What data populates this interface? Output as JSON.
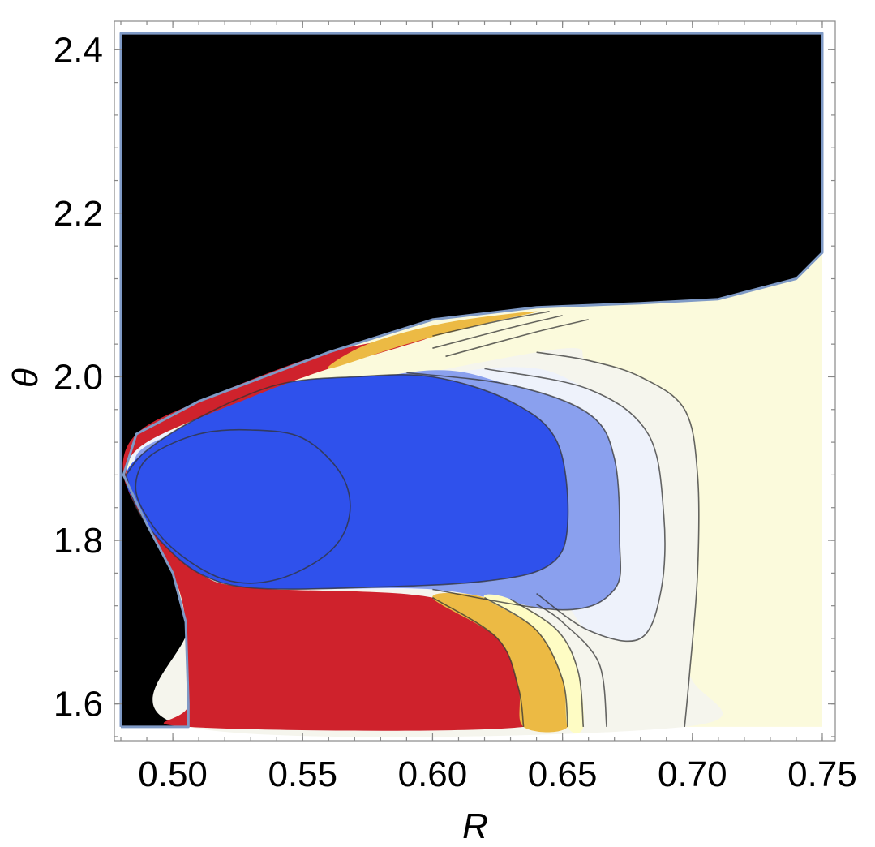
{
  "chart_data": {
    "type": "contour",
    "xlabel": "R",
    "ylabel": "θ",
    "xlim": [
      0.4775,
      0.755
    ],
    "ylim": [
      1.555,
      2.435
    ],
    "x_ticks": [
      {
        "value": 0.5,
        "label": "0.50"
      },
      {
        "value": 0.55,
        "label": "0.55"
      },
      {
        "value": 0.6,
        "label": "0.60"
      },
      {
        "value": 0.65,
        "label": "0.65"
      },
      {
        "value": 0.7,
        "label": "0.70"
      },
      {
        "value": 0.75,
        "label": "0.75"
      }
    ],
    "y_ticks": [
      {
        "value": 1.6,
        "label": "1.6"
      },
      {
        "value": 1.8,
        "label": "1.8"
      },
      {
        "value": 2.0,
        "label": "2.0"
      },
      {
        "value": 2.2,
        "label": "2.2"
      },
      {
        "value": 2.4,
        "label": "2.4"
      }
    ],
    "grid": false,
    "legend": "none",
    "colors": {
      "excluded": "#000000",
      "boundary": "#7f9ac6",
      "red": "#cf222c",
      "orange": "#ecba44",
      "light_yellow": "#fefcc4",
      "pale_gray": "#f5f5ed",
      "pale_blue": "#eef2fb",
      "mid_blue": "#8aa0ee",
      "deep_blue": "#2f51ec",
      "background": "#fbfadc"
    },
    "regions": [
      {
        "name": "excluded",
        "color": "excluded",
        "points": [
          [
            0.48,
            1.572
          ],
          [
            0.506,
            1.572
          ],
          [
            0.506,
            1.6
          ],
          [
            0.505,
            1.7
          ],
          [
            0.5,
            1.76
          ],
          [
            0.49,
            1.82
          ],
          [
            0.481,
            1.88
          ],
          [
            0.486,
            1.93
          ],
          [
            0.51,
            1.97
          ],
          [
            0.56,
            2.03
          ],
          [
            0.6,
            2.07
          ],
          [
            0.64,
            2.085
          ],
          [
            0.68,
            2.09
          ],
          [
            0.71,
            2.095
          ],
          [
            0.74,
            2.12
          ],
          [
            0.75,
            2.152
          ],
          [
            0.75,
            2.42
          ],
          [
            0.48,
            2.42
          ]
        ]
      },
      {
        "name": "background",
        "color": "background",
        "points": [
          [
            0.506,
            1.572
          ],
          [
            0.75,
            1.572
          ],
          [
            0.75,
            2.152
          ],
          [
            0.74,
            2.12
          ],
          [
            0.71,
            2.095
          ],
          [
            0.68,
            2.09
          ],
          [
            0.64,
            2.085
          ],
          [
            0.6,
            2.07
          ],
          [
            0.56,
            2.03
          ],
          [
            0.51,
            1.97
          ],
          [
            0.486,
            1.93
          ],
          [
            0.481,
            1.88
          ],
          [
            0.49,
            1.82
          ],
          [
            0.5,
            1.76
          ],
          [
            0.505,
            1.7
          ],
          [
            0.506,
            1.6
          ]
        ]
      },
      {
        "name": "level-pale-gray",
        "color": "pale_gray",
        "points": [
          [
            0.697,
            1.572
          ],
          [
            0.699,
            1.64
          ],
          [
            0.702,
            1.76
          ],
          [
            0.702,
            1.88
          ],
          [
            0.697,
            1.96
          ],
          [
            0.68,
            2.0
          ],
          [
            0.66,
            2.02
          ],
          [
            0.64,
            2.03
          ],
          [
            0.5,
            1.935
          ],
          [
            0.485,
            1.88
          ],
          [
            0.495,
            1.8
          ],
          [
            0.506,
            1.7
          ],
          [
            0.506,
            1.572
          ]
        ]
      },
      {
        "name": "level-pale-blue",
        "color": "pale_blue",
        "points": [
          [
            0.68,
            1.68
          ],
          [
            0.688,
            1.74
          ],
          [
            0.689,
            1.83
          ],
          [
            0.683,
            1.93
          ],
          [
            0.66,
            1.985
          ],
          [
            0.62,
            2.01
          ],
          [
            0.5,
            1.935
          ],
          [
            0.485,
            1.88
          ],
          [
            0.495,
            1.8
          ],
          [
            0.53,
            1.745
          ],
          [
            0.56,
            1.74
          ],
          [
            0.64,
            1.735
          ],
          [
            0.66,
            1.69
          ]
        ]
      },
      {
        "name": "level-mid-blue",
        "color": "mid_blue",
        "points": [
          [
            0.67,
            1.74
          ],
          [
            0.672,
            1.8
          ],
          [
            0.67,
            1.9
          ],
          [
            0.66,
            1.955
          ],
          [
            0.63,
            1.99
          ],
          [
            0.59,
            2.005
          ],
          [
            0.5,
            1.93
          ],
          [
            0.485,
            1.88
          ],
          [
            0.495,
            1.8
          ],
          [
            0.53,
            1.745
          ],
          [
            0.6,
            1.74
          ],
          [
            0.65,
            1.715
          ]
        ]
      },
      {
        "name": "level-deep-blue",
        "color": "deep_blue",
        "points": [
          [
            0.482,
            1.88
          ],
          [
            0.49,
            1.91
          ],
          [
            0.51,
            1.95
          ],
          [
            0.54,
            1.99
          ],
          [
            0.57,
            2.0
          ],
          [
            0.6,
            2.0
          ],
          [
            0.63,
            1.97
          ],
          [
            0.648,
            1.92
          ],
          [
            0.652,
            1.82
          ],
          [
            0.645,
            1.77
          ],
          [
            0.62,
            1.75
          ],
          [
            0.57,
            1.742
          ],
          [
            0.53,
            1.742
          ],
          [
            0.51,
            1.76
          ],
          [
            0.495,
            1.8
          ],
          [
            0.486,
            1.84
          ]
        ]
      },
      {
        "name": "level-red",
        "color": "red",
        "points": [
          [
            0.506,
            1.572
          ],
          [
            0.635,
            1.572
          ],
          [
            0.633,
            1.62
          ],
          [
            0.625,
            1.68
          ],
          [
            0.6,
            1.73
          ],
          [
            0.53,
            1.742
          ],
          [
            0.51,
            1.76
          ],
          [
            0.495,
            1.8
          ],
          [
            0.486,
            1.84
          ],
          [
            0.482,
            1.88
          ],
          [
            0.49,
            1.92
          ],
          [
            0.53,
            1.975
          ],
          [
            0.56,
            2.01
          ],
          [
            0.6,
            2.05
          ],
          [
            0.56,
            2.03
          ],
          [
            0.51,
            1.97
          ],
          [
            0.486,
            1.93
          ],
          [
            0.481,
            1.88
          ],
          [
            0.49,
            1.82
          ],
          [
            0.5,
            1.76
          ],
          [
            0.505,
            1.7
          ],
          [
            0.506,
            1.6
          ]
        ]
      },
      {
        "name": "level-orange",
        "color": "orange",
        "points": [
          [
            0.635,
            1.572
          ],
          [
            0.652,
            1.572
          ],
          [
            0.65,
            1.63
          ],
          [
            0.64,
            1.69
          ],
          [
            0.62,
            1.73
          ],
          [
            0.6,
            1.73
          ],
          [
            0.625,
            1.68
          ],
          [
            0.633,
            1.62
          ]
        ]
      },
      {
        "name": "level-orange-upper",
        "color": "orange",
        "points": [
          [
            0.56,
            2.01
          ],
          [
            0.59,
            2.04
          ],
          [
            0.62,
            2.065
          ],
          [
            0.64,
            2.08
          ],
          [
            0.605,
            2.066
          ],
          [
            0.575,
            2.04
          ]
        ]
      },
      {
        "name": "level-light-yellow",
        "color": "light_yellow",
        "points": [
          [
            0.652,
            1.572
          ],
          [
            0.658,
            1.572
          ],
          [
            0.656,
            1.64
          ],
          [
            0.648,
            1.69
          ],
          [
            0.63,
            1.728
          ],
          [
            0.62,
            1.73
          ],
          [
            0.64,
            1.69
          ],
          [
            0.65,
            1.63
          ]
        ]
      }
    ],
    "isolines": [
      {
        "name": "inner-isoline",
        "points": [
          [
            0.486,
            1.875
          ],
          [
            0.492,
            1.905
          ],
          [
            0.51,
            1.93
          ],
          [
            0.53,
            1.935
          ],
          [
            0.55,
            1.925
          ],
          [
            0.565,
            1.88
          ],
          [
            0.568,
            1.83
          ],
          [
            0.56,
            1.785
          ],
          [
            0.54,
            1.752
          ],
          [
            0.52,
            1.752
          ],
          [
            0.5,
            1.79
          ],
          [
            0.488,
            1.84
          ]
        ]
      },
      {
        "name": "deep-blue-edge",
        "points": [
          [
            0.482,
            1.88
          ],
          [
            0.49,
            1.91
          ],
          [
            0.51,
            1.95
          ],
          [
            0.54,
            1.99
          ],
          [
            0.57,
            2.0
          ],
          [
            0.6,
            2.0
          ],
          [
            0.63,
            1.97
          ],
          [
            0.648,
            1.92
          ],
          [
            0.652,
            1.82
          ],
          [
            0.645,
            1.77
          ],
          [
            0.62,
            1.75
          ],
          [
            0.57,
            1.742
          ],
          [
            0.53,
            1.742
          ],
          [
            0.51,
            1.76
          ],
          [
            0.495,
            1.8
          ],
          [
            0.486,
            1.84
          ],
          [
            0.482,
            1.88
          ]
        ]
      },
      {
        "name": "mid-blue-edge",
        "points": [
          [
            0.59,
            2.005
          ],
          [
            0.63,
            1.99
          ],
          [
            0.66,
            1.955
          ],
          [
            0.67,
            1.9
          ],
          [
            0.672,
            1.8
          ],
          [
            0.67,
            1.74
          ],
          [
            0.65,
            1.715
          ],
          [
            0.6,
            1.74
          ]
        ]
      },
      {
        "name": "pale-blue-edge",
        "points": [
          [
            0.62,
            2.01
          ],
          [
            0.66,
            1.985
          ],
          [
            0.683,
            1.93
          ],
          [
            0.689,
            1.83
          ],
          [
            0.688,
            1.74
          ],
          [
            0.68,
            1.68
          ],
          [
            0.66,
            1.69
          ],
          [
            0.64,
            1.735
          ]
        ]
      },
      {
        "name": "pale-gray-edge",
        "points": [
          [
            0.64,
            2.03
          ],
          [
            0.66,
            2.02
          ],
          [
            0.68,
            2.0
          ],
          [
            0.697,
            1.96
          ],
          [
            0.702,
            1.88
          ],
          [
            0.702,
            1.76
          ],
          [
            0.699,
            1.64
          ],
          [
            0.697,
            1.572
          ]
        ]
      },
      {
        "name": "orange-edge",
        "points": [
          [
            0.635,
            1.572
          ],
          [
            0.633,
            1.62
          ],
          [
            0.625,
            1.68
          ],
          [
            0.6,
            1.73
          ]
        ]
      },
      {
        "name": "yellow-edge",
        "points": [
          [
            0.652,
            1.572
          ],
          [
            0.65,
            1.63
          ],
          [
            0.64,
            1.69
          ],
          [
            0.62,
            1.73
          ]
        ]
      },
      {
        "name": "yellow-edge-2",
        "points": [
          [
            0.658,
            1.572
          ],
          [
            0.656,
            1.64
          ],
          [
            0.648,
            1.69
          ],
          [
            0.63,
            1.728
          ]
        ]
      },
      {
        "name": "gray-edge",
        "points": [
          [
            0.667,
            1.572
          ],
          [
            0.664,
            1.65
          ],
          [
            0.65,
            1.7
          ],
          [
            0.64,
            1.722
          ]
        ]
      },
      {
        "name": "upper-edge-1",
        "points": [
          [
            0.6,
            2.05
          ],
          [
            0.625,
            2.068
          ],
          [
            0.645,
            2.08
          ]
        ]
      },
      {
        "name": "upper-edge-2",
        "points": [
          [
            0.6,
            2.035
          ],
          [
            0.63,
            2.06
          ],
          [
            0.65,
            2.075
          ]
        ]
      },
      {
        "name": "upper-edge-3",
        "points": [
          [
            0.605,
            2.025
          ],
          [
            0.64,
            2.055
          ],
          [
            0.66,
            2.07
          ]
        ]
      }
    ],
    "boundary": [
      [
        0.48,
        1.572
      ],
      [
        0.48,
        2.42
      ],
      [
        0.75,
        2.42
      ],
      [
        0.75,
        2.152
      ],
      [
        0.74,
        2.12
      ],
      [
        0.71,
        2.095
      ],
      [
        0.68,
        2.09
      ],
      [
        0.64,
        2.085
      ],
      [
        0.6,
        2.07
      ],
      [
        0.56,
        2.03
      ],
      [
        0.51,
        1.97
      ],
      [
        0.486,
        1.93
      ],
      [
        0.481,
        1.88
      ],
      [
        0.49,
        1.82
      ],
      [
        0.5,
        1.76
      ],
      [
        0.505,
        1.7
      ],
      [
        0.506,
        1.6
      ],
      [
        0.506,
        1.572
      ],
      [
        0.48,
        1.572
      ]
    ]
  }
}
